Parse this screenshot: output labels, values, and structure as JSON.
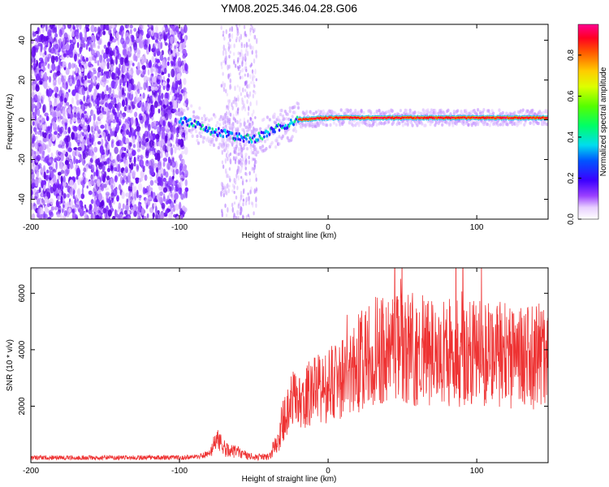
{
  "title": "YM08.2025.346.04.28.G06",
  "chart_data": [
    {
      "type": "heatmap",
      "name": "spectrogram",
      "xlabel": "Height of straight line (km)",
      "ylabel": "Frequency (Hz)",
      "xlim": [
        -200,
        148
      ],
      "ylim": [
        -50,
        48
      ],
      "xticks": [
        -200,
        -100,
        0,
        100
      ],
      "yticks": [
        -40,
        -20,
        0,
        20,
        40
      ],
      "colorbar": {
        "label": "Normalized spectral amplitude",
        "range": [
          0,
          0.95
        ],
        "ticks": [
          0.0,
          0.2,
          0.4,
          0.6,
          0.8
        ]
      },
      "description_points": {
        "noise_region_x": [
          -200,
          -100
        ],
        "gap_x": [
          -95,
          -70
        ],
        "track": {
          "x": [
            -100,
            -90,
            -80,
            -70,
            -60,
            -50,
            -45,
            -40,
            -35,
            -30,
            -20,
            -10,
            0,
            10,
            50,
            100,
            148
          ],
          "freq": [
            0,
            -2,
            -5,
            -7,
            -9,
            -10,
            -8,
            -6,
            -5,
            -3,
            0,
            0.5,
            1,
            1,
            1,
            1,
            1
          ]
        }
      }
    },
    {
      "type": "line",
      "name": "snr",
      "xlabel": "Height of straight line (km)",
      "ylabel": "SNR (10 * v/v)",
      "xlim": [
        -200,
        148
      ],
      "ylim": [
        0,
        6900
      ],
      "xticks": [
        -200,
        -100,
        0,
        100
      ],
      "yticks": [
        2000,
        4000,
        6000
      ],
      "color": "#ee3333",
      "envelope": {
        "x": [
          -200,
          -100,
          -90,
          -80,
          -75,
          -70,
          -65,
          -60,
          -55,
          -50,
          -40,
          -35,
          -30,
          -25,
          -20,
          -10,
          0,
          10,
          20,
          30,
          40,
          60,
          80,
          100,
          120,
          140,
          148
        ],
        "mean": [
          180,
          180,
          200,
          300,
          800,
          500,
          400,
          350,
          250,
          200,
          200,
          700,
          1500,
          2100,
          2300,
          2500,
          2700,
          3000,
          3500,
          3900,
          4100,
          4000,
          3900,
          3900,
          3800,
          3700,
          3700
        ]
      }
    }
  ]
}
